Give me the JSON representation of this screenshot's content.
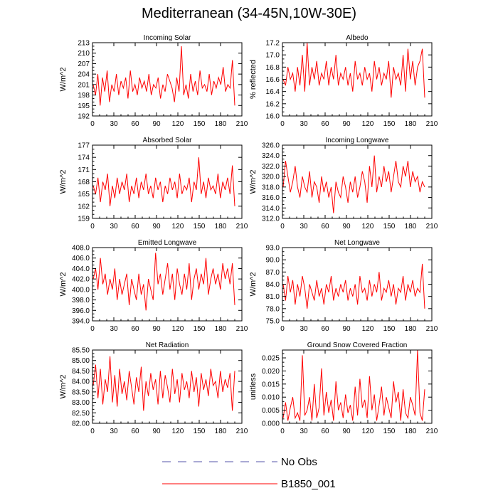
{
  "figure": {
    "title": "Mediterranean (34-45N,10W-30E)",
    "line_color": "#ff0000",
    "obs_color": "#5555aa"
  },
  "legend": {
    "obs_label": "No Obs",
    "model_label": "B1850_001"
  },
  "chart_data": [
    {
      "type": "line",
      "title": "Incoming Solar",
      "ylabel": "W/m^2",
      "xlim": [
        0,
        210
      ],
      "x_ticks": [
        "0",
        "30",
        "60",
        "90",
        "120",
        "150",
        "180",
        "210"
      ],
      "ylim": [
        192,
        213
      ],
      "y_ticks": [
        "192",
        "195",
        "198",
        "201",
        "204",
        "207",
        "210",
        "213"
      ],
      "series": [
        {
          "name": "B1850_001",
          "x_start": 1,
          "x_end": 200,
          "anchors": [
            201,
            198,
            204,
            195,
            203,
            199,
            205,
            196,
            201,
            199,
            204,
            198,
            202,
            200,
            203,
            197,
            205,
            199,
            201,
            198,
            203,
            200,
            202,
            199,
            204,
            198,
            201,
            200,
            203,
            197,
            201,
            199,
            204,
            202,
            200,
            196,
            203,
            199,
            212,
            198,
            201,
            197,
            204,
            199,
            202,
            198,
            205,
            200,
            201,
            199,
            204,
            198,
            202,
            200,
            203,
            201,
            206,
            199,
            201,
            200,
            208,
            195
          ]
        }
      ]
    },
    {
      "type": "line",
      "title": "Albedo",
      "ylabel": "% reflected",
      "xlim": [
        0,
        210
      ],
      "x_ticks": [
        "0",
        "30",
        "60",
        "90",
        "120",
        "150",
        "180",
        "210"
      ],
      "ylim": [
        16.0,
        17.2
      ],
      "y_ticks": [
        "16.0",
        "16.2",
        "16.4",
        "16.6",
        "16.8",
        "17.0",
        "17.2"
      ],
      "series": [
        {
          "name": "B1850_001",
          "x_start": 1,
          "x_end": 200,
          "anchors": [
            16.6,
            16.5,
            16.8,
            16.6,
            16.7,
            16.4,
            16.8,
            16.5,
            17.0,
            16.4,
            17.2,
            16.5,
            16.8,
            16.6,
            16.9,
            16.5,
            16.7,
            16.6,
            16.9,
            16.5,
            16.8,
            16.6,
            17.0,
            16.5,
            16.7,
            16.6,
            16.8,
            16.5,
            16.7,
            16.4,
            16.9,
            16.6,
            16.7,
            16.5,
            16.8,
            16.6,
            16.7,
            16.4,
            16.9,
            16.6,
            16.8,
            16.5,
            16.7,
            16.6,
            16.9,
            16.3,
            16.8,
            16.6,
            16.7,
            16.5,
            17.0,
            16.4,
            17.1,
            16.6,
            16.9,
            16.5,
            16.8,
            16.9,
            17.1,
            16.3
          ]
        }
      ]
    },
    {
      "type": "line",
      "title": "Absorbed Solar",
      "ylabel": "W/m^2",
      "xlim": [
        0,
        210
      ],
      "x_ticks": [
        "0",
        "30",
        "60",
        "90",
        "120",
        "150",
        "180",
        "210"
      ],
      "ylim": [
        159,
        177
      ],
      "y_ticks": [
        "159",
        "162",
        "165",
        "168",
        "171",
        "174",
        "177"
      ],
      "series": [
        {
          "name": "B1850_001",
          "x_start": 1,
          "x_end": 200,
          "anchors": [
            167,
            165,
            169,
            163,
            168,
            166,
            170,
            162,
            167,
            164,
            169,
            165,
            168,
            166,
            170,
            163,
            167,
            165,
            169,
            164,
            168,
            166,
            170,
            165,
            167,
            164,
            169,
            166,
            168,
            163,
            167,
            165,
            169,
            166,
            168,
            164,
            170,
            165,
            167,
            166,
            169,
            163,
            168,
            166,
            174,
            165,
            168,
            164,
            169,
            166,
            167,
            165,
            170,
            164,
            168,
            166,
            169,
            165,
            172,
            162
          ]
        }
      ]
    },
    {
      "type": "line",
      "title": "Incoming Longwave",
      "ylabel": "W/m^2",
      "xlim": [
        0,
        210
      ],
      "x_ticks": [
        "0",
        "30",
        "60",
        "90",
        "120",
        "150",
        "180",
        "210"
      ],
      "ylim": [
        312.0,
        326.0
      ],
      "y_ticks": [
        "312.0",
        "314.0",
        "316.0",
        "318.0",
        "320.0",
        "322.0",
        "324.0",
        "326.0"
      ],
      "series": [
        {
          "name": "B1850_001",
          "x_start": 1,
          "x_end": 200,
          "anchors": [
            318,
            323,
            320,
            317,
            319,
            322,
            318,
            316,
            320,
            318,
            317,
            321,
            316,
            319,
            318,
            315,
            320,
            317,
            319,
            316,
            318,
            313,
            319,
            317,
            316,
            320,
            318,
            315,
            319,
            317,
            320,
            316,
            318,
            321,
            319,
            315,
            322,
            318,
            324,
            317,
            320,
            318,
            322,
            319,
            321,
            317,
            320,
            323,
            319,
            318,
            322,
            320,
            323,
            318,
            321,
            319,
            320,
            317,
            319,
            318
          ]
        }
      ]
    },
    {
      "type": "line",
      "title": "Emitted Longwave",
      "ylabel": "W/m^2",
      "xlim": [
        0,
        210
      ],
      "x_ticks": [
        "0",
        "30",
        "60",
        "90",
        "120",
        "150",
        "180",
        "210"
      ],
      "ylim": [
        394.0,
        408.0
      ],
      "y_ticks": [
        "394.0",
        "396.0",
        "398.0",
        "400.0",
        "402.0",
        "404.0",
        "406.0",
        "408.0"
      ],
      "series": [
        {
          "name": "B1850_001",
          "x_start": 1,
          "x_end": 200,
          "anchors": [
            402,
            404,
            400,
            406,
            401,
            403,
            399,
            402,
            400,
            404,
            398,
            402,
            399,
            401,
            403,
            397,
            402,
            400,
            398,
            403,
            399,
            401,
            396,
            402,
            400,
            398,
            407,
            401,
            403,
            399,
            402,
            405,
            400,
            403,
            398,
            404,
            401,
            399,
            403,
            400,
            405,
            398,
            402,
            404,
            400,
            403,
            401,
            406,
            399,
            402,
            404,
            401,
            403,
            400,
            405,
            402,
            404,
            401,
            405,
            397
          ]
        }
      ]
    },
    {
      "type": "line",
      "title": "Net Longwave",
      "ylabel": "W/m^2",
      "xlim": [
        0,
        210
      ],
      "x_ticks": [
        "0",
        "30",
        "60",
        "90",
        "120",
        "150",
        "180",
        "210"
      ],
      "ylim": [
        75.0,
        93.0
      ],
      "y_ticks": [
        "75.0",
        "78.0",
        "81.0",
        "84.0",
        "87.0",
        "90.0",
        "93.0"
      ],
      "series": [
        {
          "name": "B1850_001",
          "x_start": 1,
          "x_end": 200,
          "anchors": [
            84,
            80,
            86,
            82,
            85,
            79,
            84,
            81,
            86,
            83,
            78,
            84,
            82,
            80,
            85,
            81,
            83,
            79,
            84,
            82,
            86,
            80,
            83,
            81,
            84,
            82,
            85,
            80,
            83,
            81,
            84,
            79,
            86,
            82,
            83,
            80,
            85,
            81,
            84,
            82,
            87,
            80,
            83,
            82,
            85,
            81,
            84,
            79,
            83,
            82,
            86,
            80,
            84,
            82,
            85,
            81,
            83,
            82,
            89,
            78
          ]
        }
      ]
    },
    {
      "type": "line",
      "title": "Net Radiation",
      "ylabel": "W/m^2",
      "xlim": [
        0,
        210
      ],
      "x_ticks": [
        "0",
        "30",
        "60",
        "90",
        "120",
        "150",
        "180",
        "210"
      ],
      "ylim": [
        82.0,
        85.5
      ],
      "y_ticks": [
        "82.00",
        "82.50",
        "83.00",
        "83.50",
        "84.00",
        "84.50",
        "85.00",
        "85.50"
      ],
      "series": [
        {
          "name": "B1850_001",
          "x_start": 1,
          "x_end": 200,
          "anchors": [
            83.8,
            84.8,
            83.2,
            84.6,
            82.9,
            84.1,
            83.5,
            85.2,
            83.0,
            84.3,
            82.8,
            84.6,
            83.4,
            84.0,
            83.1,
            84.5,
            83.7,
            82.9,
            84.2,
            83.5,
            84.7,
            82.6,
            84.0,
            83.3,
            84.4,
            83.6,
            84.1,
            82.9,
            84.5,
            83.2,
            84.3,
            83.7,
            83.0,
            84.6,
            83.4,
            84.1,
            83.0,
            84.4,
            83.6,
            84.0,
            83.2,
            84.5,
            83.5,
            84.2,
            82.8,
            84.4,
            83.6,
            84.1,
            83.3,
            84.6,
            83.8,
            84.0,
            83.2,
            84.5,
            83.5,
            84.1,
            83.7,
            84.4,
            82.6,
            84.5
          ]
        }
      ]
    },
    {
      "type": "line",
      "title": "Ground Snow Covered Fraction",
      "ylabel": "unitless",
      "xlim": [
        0,
        210
      ],
      "x_ticks": [
        "0",
        "30",
        "60",
        "90",
        "120",
        "150",
        "180",
        "210"
      ],
      "ylim": [
        0.0,
        0.028
      ],
      "y_ticks": [
        "0.000",
        "0.005",
        "0.010",
        "0.015",
        "0.020",
        "0.025"
      ],
      "series": [
        {
          "name": "B1850_001",
          "x_start": 1,
          "x_end": 200,
          "anchors": [
            0.002,
            0.008,
            0.001,
            0.006,
            0.01,
            0.002,
            0.004,
            0.001,
            0.026,
            0.003,
            0.005,
            0.01,
            0.001,
            0.015,
            0.002,
            0.006,
            0.021,
            0.003,
            0.012,
            0.004,
            0.009,
            0.001,
            0.016,
            0.005,
            0.008,
            0.002,
            0.011,
            0.004,
            0.007,
            0.001,
            0.014,
            0.003,
            0.017,
            0.006,
            0.009,
            0.002,
            0.018,
            0.005,
            0.011,
            0.001,
            0.007,
            0.014,
            0.003,
            0.01,
            0.006,
            0.002,
            0.016,
            0.008,
            0.012,
            0.001,
            0.013,
            0.004,
            0.002,
            0.01,
            0.007,
            0.003,
            0.028,
            0.004,
            0.001,
            0.013
          ]
        }
      ]
    }
  ]
}
